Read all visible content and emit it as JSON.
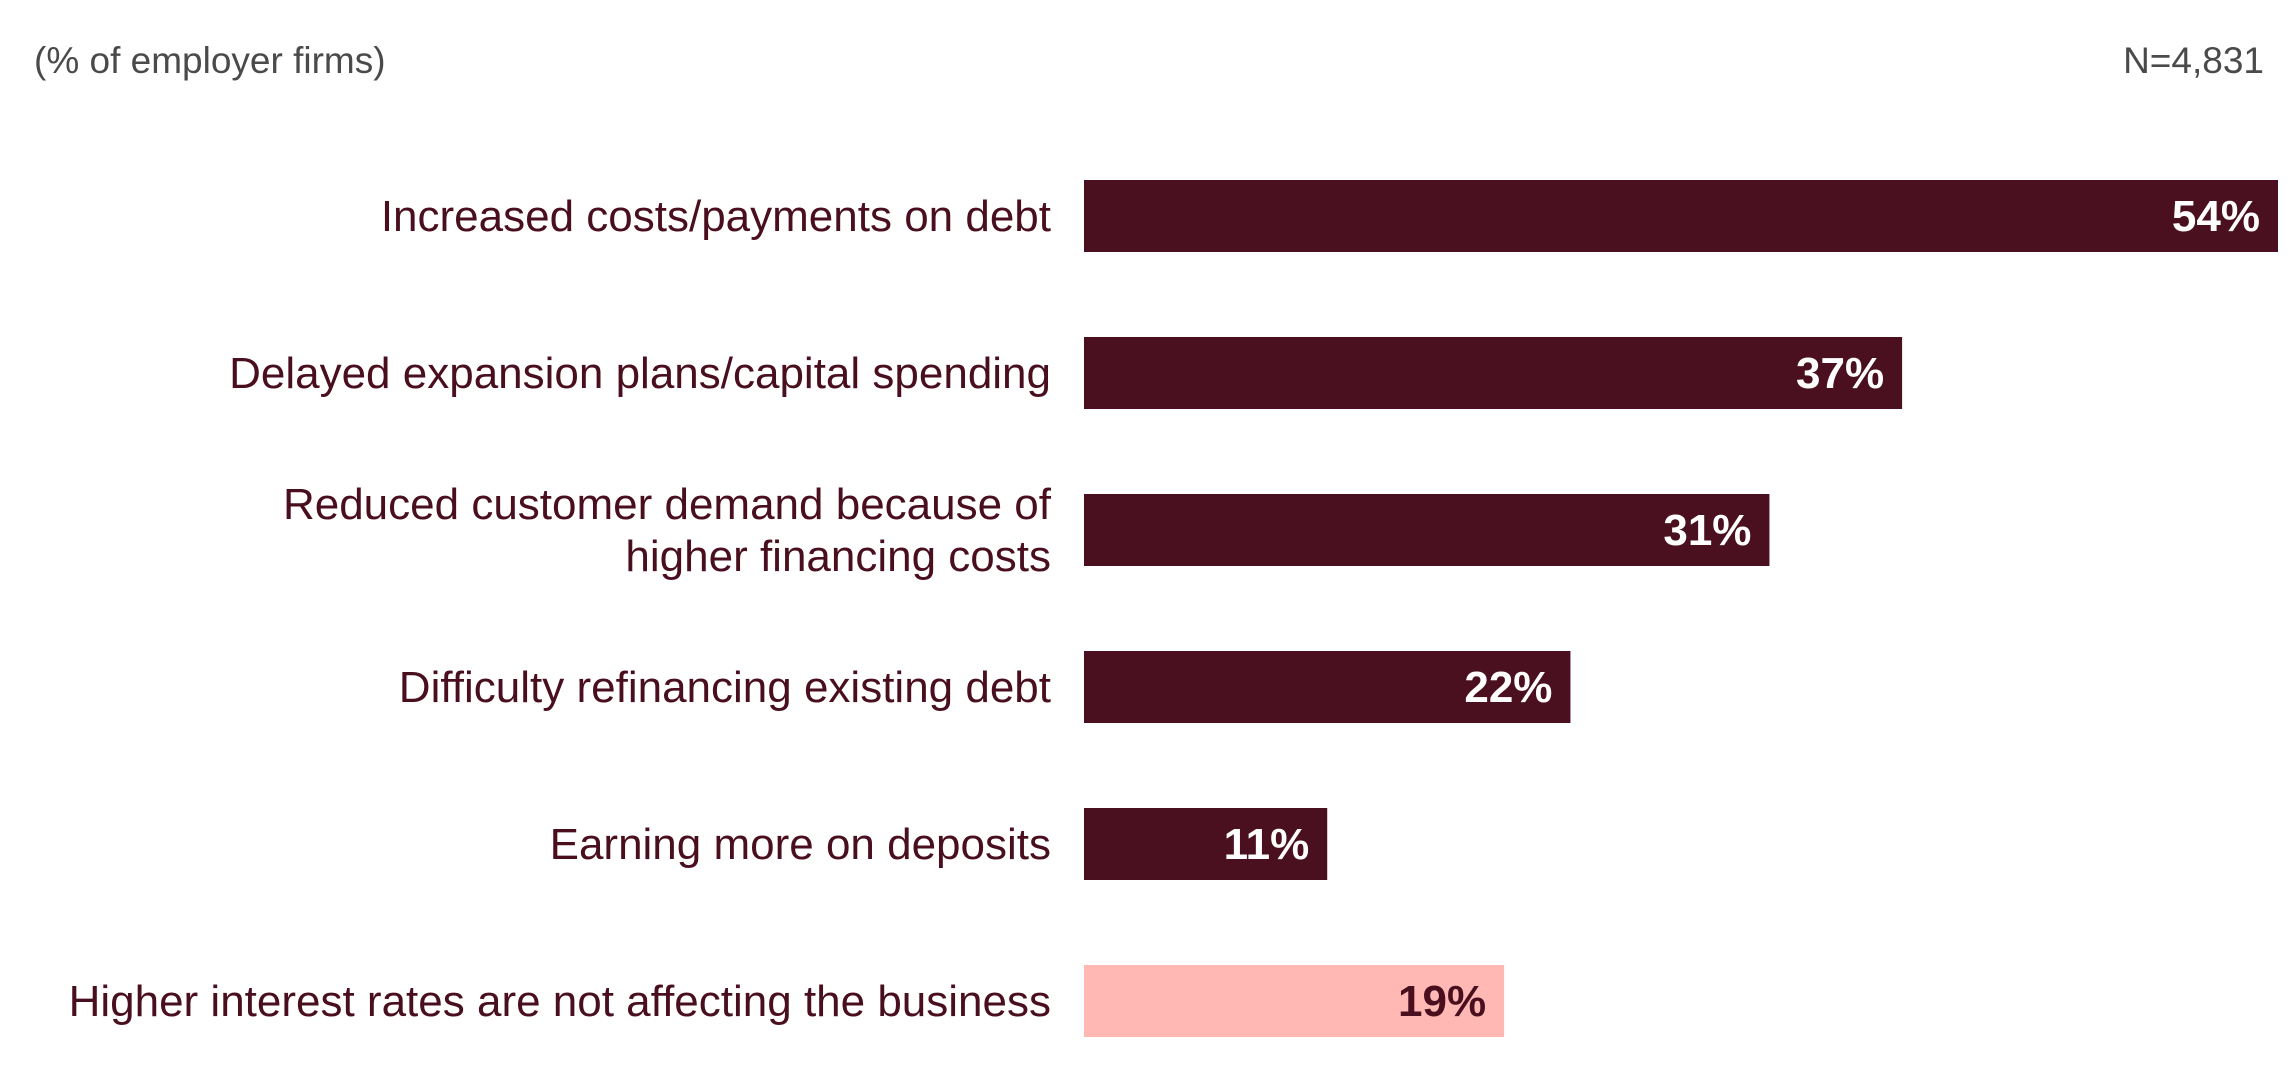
{
  "header": {
    "unit_note": "(% of employer firms)",
    "sample_size": "N=4,831"
  },
  "colors": {
    "primary_bar": "#4a101f",
    "highlight_bar": "#ffb8b3",
    "label_text": "#4a0f1e",
    "note_text": "#4a4a4a",
    "value_text_on_dark": "#ffffff",
    "value_text_on_light": "#4a0f1e"
  },
  "chart_data": {
    "type": "bar",
    "orientation": "horizontal",
    "categories": [
      [
        "Increased costs/payments on debt"
      ],
      [
        "Delayed expansion plans/capital spending"
      ],
      [
        "Reduced customer demand because of",
        "higher financing costs"
      ],
      [
        "Difficulty refinancing existing debt"
      ],
      [
        "Earning more on deposits"
      ],
      [
        "Higher interest rates are not affecting the business"
      ]
    ],
    "values": [
      54,
      37,
      31,
      22,
      11,
      19
    ],
    "value_labels": [
      "54%",
      "37%",
      "31%",
      "22%",
      "11%",
      "19%"
    ],
    "highlighted": [
      false,
      false,
      false,
      false,
      false,
      true
    ],
    "title": "",
    "xlabel": "",
    "ylabel": "",
    "xlim": [
      0,
      54
    ],
    "grid": false,
    "legend": "none"
  }
}
